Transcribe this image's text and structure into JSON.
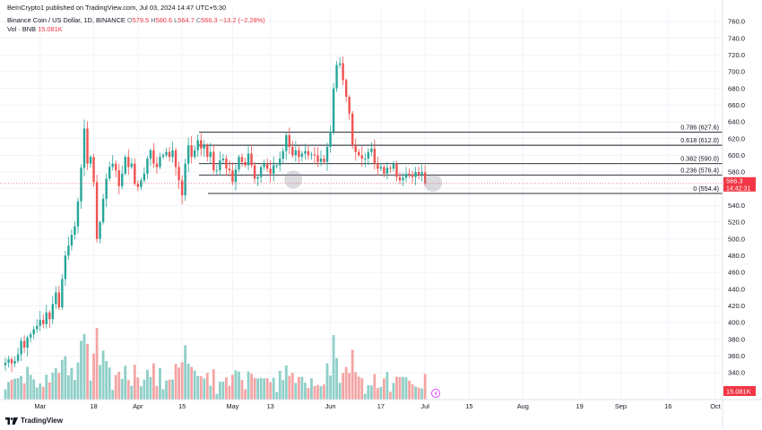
{
  "header": {
    "published": "BeInCrypto1 published on TradingView.com, Jul 03, 2024 14:47 UTC+5:30",
    "symbol": "Binance Coin / US Dollar, 1D, BINANCE",
    "o_label": "O",
    "o": "579.5",
    "h_label": "H",
    "h": "580.6",
    "l_label": "L",
    "l": "564.7",
    "c_label": "C",
    "c": "566.3",
    "change": "−13.2 (−2.28%)",
    "vol_label": "Vol · BNB",
    "vol_value": "15.081K"
  },
  "footer": {
    "brand": "TradingView"
  },
  "colors": {
    "up": "#26a69a",
    "down": "#ef5350",
    "up_vol": "#8fcfc8",
    "down_vol": "#f4a5a5",
    "price_tag": "#f23645",
    "fib": "#131722"
  },
  "chart_data": {
    "type": "candlestick",
    "price_axis": {
      "min": 320,
      "max": 770,
      "ticks": [
        340,
        360,
        380,
        400,
        420,
        440,
        460,
        480,
        500,
        520,
        540,
        560,
        580,
        600,
        620,
        640,
        660,
        680,
        700,
        720,
        740,
        760
      ]
    },
    "time_axis": {
      "labels": [
        {
          "text": "Mar",
          "index": 11
        },
        {
          "text": "18",
          "index": 28
        },
        {
          "text": "Apr",
          "index": 42
        },
        {
          "text": "15",
          "index": 56
        },
        {
          "text": "May",
          "index": 72
        },
        {
          "text": "13",
          "index": 84
        },
        {
          "text": "Jun",
          "index": 103
        },
        {
          "text": "17",
          "index": 119
        },
        {
          "text": "Jul",
          "index": 133
        },
        {
          "text": "15",
          "index": 147
        },
        {
          "text": "Aug",
          "index": 164
        },
        {
          "text": "19",
          "index": 182
        },
        {
          "text": "Sep",
          "index": 195
        },
        {
          "text": "16",
          "index": 210
        },
        {
          "text": "Oct",
          "index": 225
        }
      ]
    },
    "fib_levels": [
      {
        "label": "0.786 (627.6)",
        "price": 627.6
      },
      {
        "label": "0.618 (612.0)",
        "price": 612.0
      },
      {
        "label": "0.382 (590.0)",
        "price": 590.0
      },
      {
        "label": "0.236 (576.4)",
        "price": 576.4
      },
      {
        "label": "0 (554.4)",
        "price": 554.4
      }
    ],
    "last_price": {
      "value": "566.3",
      "countdown": "14:42:31",
      "price": 566.3
    },
    "volume_last": "15.081K",
    "closes": [
      352,
      356,
      351,
      354,
      362,
      378,
      370,
      382,
      386,
      392,
      396,
      403,
      398,
      412,
      404,
      422,
      436,
      418,
      452,
      480,
      492,
      505,
      515,
      545,
      585,
      632,
      590,
      598,
      568,
      500,
      520,
      548,
      572,
      586,
      590,
      582,
      563,
      578,
      598,
      586,
      590,
      566,
      562,
      570,
      578,
      596,
      606,
      590,
      586,
      598,
      600,
      604,
      598,
      606,
      586,
      570,
      552,
      590,
      612,
      598,
      606,
      618,
      608,
      612,
      598,
      604,
      582,
      582,
      594,
      596,
      584,
      582,
      568,
      583,
      598,
      592,
      588,
      602,
      588,
      572,
      574,
      586,
      590,
      584,
      578,
      588,
      588,
      596,
      605,
      624,
      610,
      600,
      606,
      598,
      602,
      605,
      600,
      601,
      600,
      592,
      596,
      592,
      610,
      628,
      680,
      708,
      710,
      690,
      670,
      650,
      612,
      604,
      600,
      596,
      596,
      604,
      608,
      590,
      584,
      586,
      578,
      585,
      584,
      590,
      574,
      570,
      573,
      578,
      577,
      574,
      580,
      577,
      579.5,
      566.3
    ]
  }
}
